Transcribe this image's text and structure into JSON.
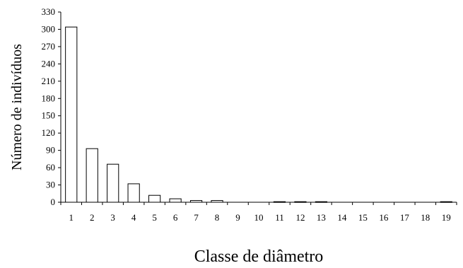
{
  "chart_data": {
    "type": "bar",
    "title": "",
    "xlabel": "Classe de diâmetro",
    "ylabel": "Número de indivíduos",
    "categories": [
      "1",
      "2",
      "3",
      "4",
      "5",
      "6",
      "7",
      "8",
      "9",
      "10",
      "11",
      "12",
      "13",
      "14",
      "15",
      "16",
      "17",
      "18",
      "19"
    ],
    "values": [
      304,
      93,
      66,
      32,
      12,
      6,
      3,
      3,
      0,
      0,
      1,
      1,
      1,
      0,
      0,
      0,
      0,
      0,
      1
    ],
    "ylim": [
      0,
      330
    ],
    "yticks": [
      0,
      30,
      60,
      90,
      120,
      150,
      180,
      210,
      240,
      270,
      300,
      330
    ],
    "grid": false,
    "legend": "none",
    "bar_fill": "#ffffff",
    "bar_stroke": "#000000"
  }
}
